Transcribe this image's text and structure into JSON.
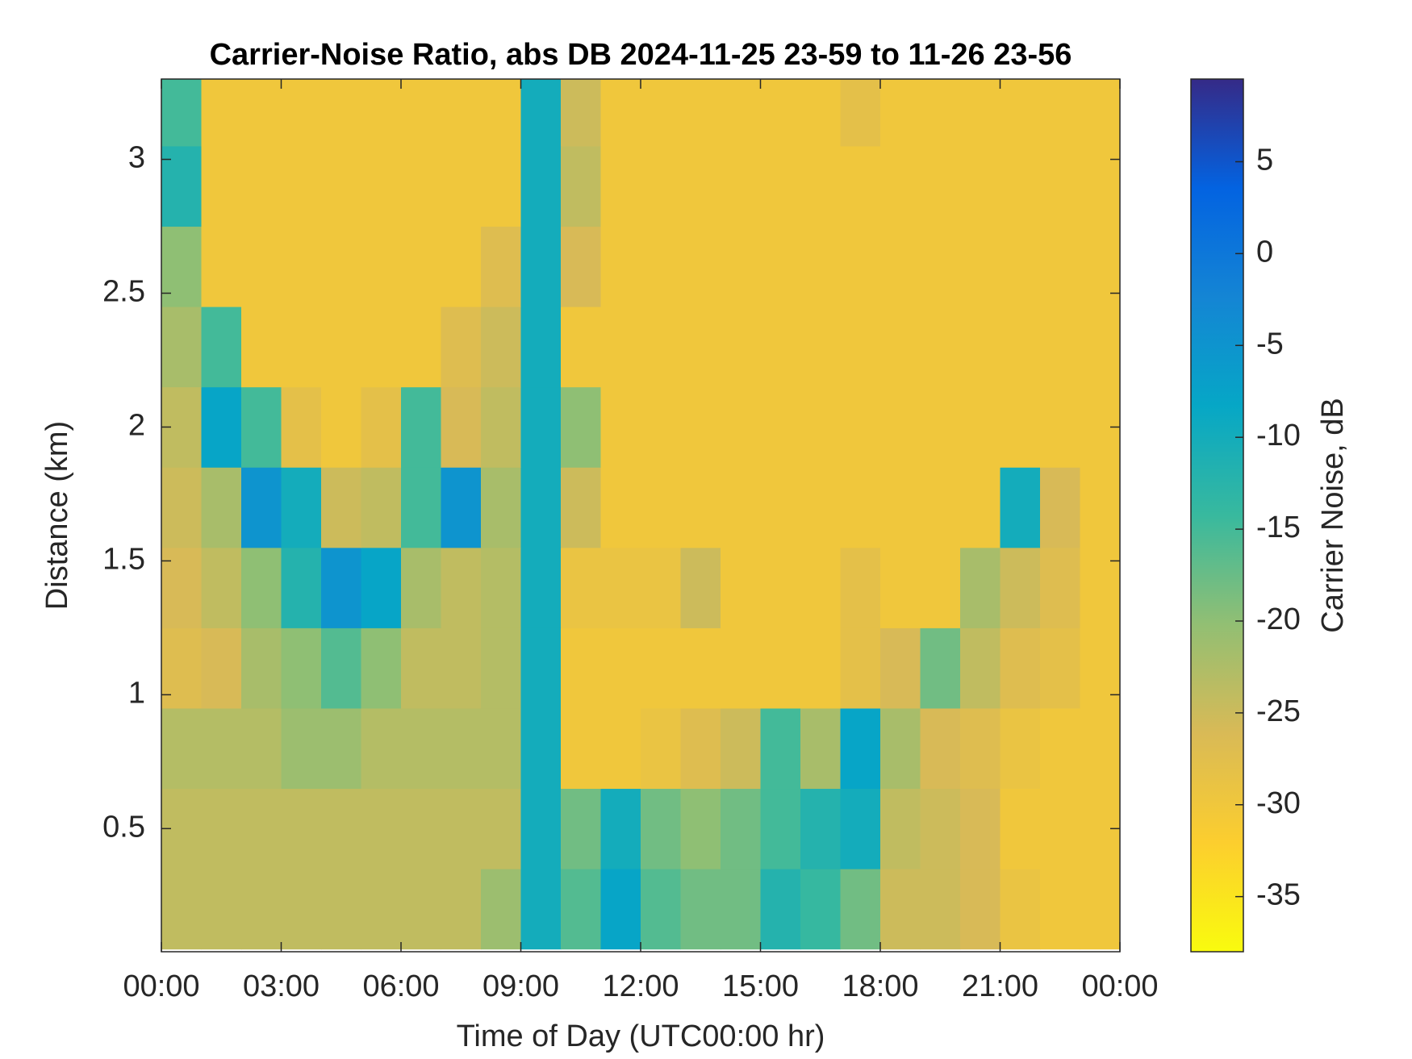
{
  "chart_data": {
    "type": "heatmap",
    "title": "Carrier-Noise Ratio, abs DB 2024-11-25 23-59 to 11-26 23-56",
    "xlabel": "Time of Day (UTC00:00 hr)",
    "ylabel": "Distance (km)",
    "colorbar_label": "Carrier Noise, dB",
    "colormap": "parula",
    "colormap_reversed": true,
    "x": [
      0.5,
      1.5,
      2.5,
      3.5,
      4.5,
      5.5,
      6.5,
      7.5,
      8.5,
      9.5,
      10.5,
      11.5,
      12.5,
      13.5,
      14.5,
      15.5,
      16.5,
      17.5,
      18.5,
      19.5,
      20.5,
      21.5,
      22.5,
      23.5
    ],
    "y": [
      0.2,
      0.5,
      0.8,
      1.1,
      1.4,
      1.7,
      2.0,
      2.3,
      2.6,
      2.9,
      3.2
    ],
    "z": [
      [
        -24,
        -24,
        -24,
        -24,
        -24,
        -24,
        -24,
        -24,
        -21,
        -10,
        -16,
        -8,
        -16,
        -18,
        -18,
        -12,
        -14,
        -18,
        -25,
        -25,
        -26,
        -29,
        -30,
        -30
      ],
      [
        -24,
        -24,
        -24,
        -24,
        -24,
        -24,
        -24,
        -24,
        -24,
        -10,
        -18,
        -10,
        -18,
        -20,
        -18,
        -15,
        -12,
        -10,
        -24,
        -25,
        -26,
        -30,
        -30,
        -30
      ],
      [
        -23,
        -23,
        -23,
        -21,
        -21,
        -23,
        -23,
        -23,
        -23,
        -10,
        -30,
        -30,
        -29,
        -27,
        -25,
        -15,
        -22,
        -8,
        -22,
        -26,
        -27,
        -29,
        -30,
        -30
      ],
      [
        -27,
        -26,
        -22,
        -20,
        -16,
        -20,
        -24,
        -24,
        -23,
        -10,
        -30,
        -30,
        -30,
        -30,
        -30,
        -30,
        -30,
        -28,
        -26,
        -18,
        -24,
        -27,
        -28,
        -30
      ],
      [
        -26,
        -24,
        -20,
        -12,
        -5,
        -8,
        -22,
        -24,
        -23,
        -10,
        -29,
        -29,
        -29,
        -25,
        -30,
        -30,
        -30,
        -28,
        -30,
        -30,
        -22,
        -25,
        -27,
        -30
      ],
      [
        -25,
        -22,
        -5,
        -10,
        -25,
        -24,
        -15,
        -5,
        -22,
        -10,
        -25,
        -30,
        -30,
        -30,
        -30,
        -30,
        -30,
        -30,
        -30,
        -30,
        -30,
        -10,
        -26,
        -30
      ],
      [
        -24,
        -8,
        -15,
        -28,
        -30,
        -28,
        -15,
        -26,
        -24,
        -10,
        -20,
        -30,
        -30,
        -30,
        -30,
        -30,
        -30,
        -30,
        -30,
        -30,
        -30,
        -30,
        -30,
        -30
      ],
      [
        -22,
        -15,
        -30,
        -30,
        -30,
        -30,
        -30,
        -27,
        -25,
        -10,
        -30,
        -30,
        -30,
        -30,
        -30,
        -30,
        -30,
        -30,
        -30,
        -30,
        -30,
        -30,
        -30,
        -30
      ],
      [
        -20,
        -30,
        -30,
        -30,
        -30,
        -30,
        -30,
        -30,
        -27,
        -10,
        -26,
        -30,
        -30,
        -30,
        -30,
        -30,
        -30,
        -30,
        -30,
        -30,
        -30,
        -30,
        -30,
        -30
      ],
      [
        -12,
        -30,
        -30,
        -30,
        -30,
        -30,
        -30,
        -30,
        -30,
        -10,
        -24,
        -30,
        -30,
        -30,
        -30,
        -30,
        -30,
        -30,
        -30,
        -30,
        -30,
        -30,
        -30,
        -30
      ],
      [
        -15,
        -30,
        -30,
        -30,
        -30,
        -30,
        -30,
        -30,
        -30,
        -10,
        -25,
        -30,
        -30,
        -30,
        -30,
        -30,
        -30,
        -28,
        -30,
        -30,
        -30,
        -30,
        -30,
        -30
      ]
    ],
    "xlim": [
      0,
      24
    ],
    "xticks": [
      {
        "value": 0,
        "label": "00:00"
      },
      {
        "value": 3,
        "label": "03:00"
      },
      {
        "value": 6,
        "label": "06:00"
      },
      {
        "value": 9,
        "label": "09:00"
      },
      {
        "value": 12,
        "label": "12:00"
      },
      {
        "value": 15,
        "label": "15:00"
      },
      {
        "value": 18,
        "label": "18:00"
      },
      {
        "value": 21,
        "label": "21:00"
      },
      {
        "value": 24,
        "label": "00:00"
      }
    ],
    "ylim": [
      0.04,
      3.3
    ],
    "yticks": [
      0.5,
      1,
      1.5,
      2,
      2.5,
      3
    ],
    "clim": [
      -38,
      9.5
    ],
    "cticks": [
      -35,
      -30,
      -25,
      -20,
      -15,
      -10,
      -5,
      0,
      5
    ]
  }
}
